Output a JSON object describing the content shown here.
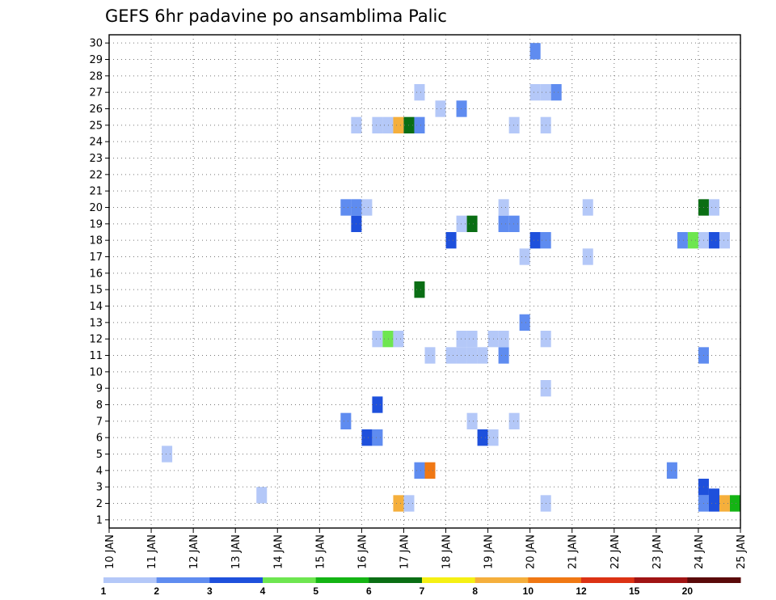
{
  "chart_data": {
    "type": "heatmap",
    "title": "GEFS 6hr padavine po ansamblima Palic",
    "xlabel": "",
    "ylabel": "",
    "x_ticks": [
      "10 JAN",
      "11 JAN",
      "12 JAN",
      "13 JAN",
      "14 JAN",
      "15 JAN",
      "16 JAN",
      "17 JAN",
      "18 JAN",
      "19 JAN",
      "20 JAN",
      "21 JAN",
      "22 JAN",
      "23 JAN",
      "24 JAN",
      "25 JAN"
    ],
    "y_ticks": [
      "1",
      "2",
      "3",
      "4",
      "5",
      "6",
      "7",
      "8",
      "9",
      "10",
      "11",
      "12",
      "13",
      "14",
      "15",
      "16",
      "17",
      "18",
      "19",
      "20",
      "21",
      "22",
      "23",
      "24",
      "25",
      "26",
      "27",
      "28",
      "29",
      "30"
    ],
    "xlim": [
      0,
      60
    ],
    "ylim": [
      0.5,
      30.5
    ],
    "grid": true,
    "colorbar": {
      "levels": [
        "1",
        "2",
        "3",
        "4",
        "5",
        "6",
        "7",
        "8",
        "10",
        "12",
        "15",
        "20"
      ],
      "colors": [
        "#b4c8f8",
        "#5f8cf0",
        "#1e50dc",
        "#6ee650",
        "#14b414",
        "#0a6e14",
        "#f5f014",
        "#f5af3c",
        "#f07814",
        "#dc3214",
        "#a01414",
        "#5a0a0a"
      ]
    },
    "cells": [
      {
        "x": 27.5,
        "y": 2,
        "v": 8
      },
      {
        "x": 28.5,
        "y": 2,
        "v": 1
      },
      {
        "x": 41.5,
        "y": 2,
        "v": 1
      },
      {
        "x": 56.5,
        "y": 2,
        "v": 2
      },
      {
        "x": 57.5,
        "y": 2,
        "v": 3
      },
      {
        "x": 58.5,
        "y": 2,
        "v": 8
      },
      {
        "x": 59.5,
        "y": 2,
        "v": 5
      },
      {
        "x": 57.5,
        "y": 2.4,
        "v": 3
      },
      {
        "x": 56.5,
        "y": 3,
        "v": 3
      },
      {
        "x": 14.5,
        "y": 2.5,
        "v": 1
      },
      {
        "x": 29.5,
        "y": 4,
        "v": 2
      },
      {
        "x": 30.5,
        "y": 4,
        "v": 9
      },
      {
        "x": 53.5,
        "y": 4,
        "v": 2
      },
      {
        "x": 5.5,
        "y": 5,
        "v": 1
      },
      {
        "x": 24.5,
        "y": 6,
        "v": 3
      },
      {
        "x": 25.5,
        "y": 6,
        "v": 2
      },
      {
        "x": 35.5,
        "y": 6,
        "v": 3
      },
      {
        "x": 36.5,
        "y": 6,
        "v": 1
      },
      {
        "x": 22.5,
        "y": 7,
        "v": 2
      },
      {
        "x": 34.5,
        "y": 7,
        "v": 1
      },
      {
        "x": 38.5,
        "y": 7,
        "v": 1
      },
      {
        "x": 25.5,
        "y": 8,
        "v": 3
      },
      {
        "x": 41.5,
        "y": 9,
        "v": 1
      },
      {
        "x": 30.5,
        "y": 11,
        "v": 1
      },
      {
        "x": 32.5,
        "y": 11,
        "v": 1
      },
      {
        "x": 33.5,
        "y": 11,
        "v": 1
      },
      {
        "x": 34.5,
        "y": 11,
        "v": 1
      },
      {
        "x": 35.5,
        "y": 11,
        "v": 1
      },
      {
        "x": 37.5,
        "y": 11,
        "v": 2
      },
      {
        "x": 56.5,
        "y": 11,
        "v": 2
      },
      {
        "x": 25.5,
        "y": 12,
        "v": 1
      },
      {
        "x": 26.5,
        "y": 12,
        "v": 4
      },
      {
        "x": 27.5,
        "y": 12,
        "v": 1
      },
      {
        "x": 33.5,
        "y": 12,
        "v": 1
      },
      {
        "x": 34.5,
        "y": 12,
        "v": 1
      },
      {
        "x": 36.5,
        "y": 12,
        "v": 1
      },
      {
        "x": 37.5,
        "y": 12,
        "v": 1
      },
      {
        "x": 41.5,
        "y": 12,
        "v": 1
      },
      {
        "x": 39.5,
        "y": 13,
        "v": 2
      },
      {
        "x": 29.5,
        "y": 15,
        "v": 6
      },
      {
        "x": 39.5,
        "y": 17,
        "v": 1
      },
      {
        "x": 45.5,
        "y": 17,
        "v": 1
      },
      {
        "x": 32.5,
        "y": 18,
        "v": 3
      },
      {
        "x": 40.5,
        "y": 18,
        "v": 3
      },
      {
        "x": 41.5,
        "y": 18,
        "v": 2
      },
      {
        "x": 54.5,
        "y": 18,
        "v": 2
      },
      {
        "x": 55.5,
        "y": 18,
        "v": 4
      },
      {
        "x": 56.5,
        "y": 18,
        "v": 1
      },
      {
        "x": 57.5,
        "y": 18,
        "v": 3
      },
      {
        "x": 58.5,
        "y": 18,
        "v": 1
      },
      {
        "x": 23.5,
        "y": 19,
        "v": 3
      },
      {
        "x": 33.5,
        "y": 19,
        "v": 1
      },
      {
        "x": 34.5,
        "y": 19,
        "v": 6
      },
      {
        "x": 37.5,
        "y": 19,
        "v": 2
      },
      {
        "x": 38.5,
        "y": 19,
        "v": 2
      },
      {
        "x": 22.5,
        "y": 20,
        "v": 2
      },
      {
        "x": 23.5,
        "y": 20,
        "v": 2
      },
      {
        "x": 24.5,
        "y": 20,
        "v": 1
      },
      {
        "x": 37.5,
        "y": 20,
        "v": 1
      },
      {
        "x": 45.5,
        "y": 20,
        "v": 1
      },
      {
        "x": 56.5,
        "y": 20,
        "v": 6
      },
      {
        "x": 57.5,
        "y": 20,
        "v": 1
      },
      {
        "x": 23.5,
        "y": 25,
        "v": 1
      },
      {
        "x": 25.5,
        "y": 25,
        "v": 1
      },
      {
        "x": 26.5,
        "y": 25,
        "v": 1
      },
      {
        "x": 27.5,
        "y": 25,
        "v": 8
      },
      {
        "x": 28.5,
        "y": 25,
        "v": 6
      },
      {
        "x": 29.5,
        "y": 25,
        "v": 2
      },
      {
        "x": 38.5,
        "y": 25,
        "v": 1
      },
      {
        "x": 41.5,
        "y": 25,
        "v": 1
      },
      {
        "x": 31.5,
        "y": 26,
        "v": 1
      },
      {
        "x": 33.5,
        "y": 26,
        "v": 2
      },
      {
        "x": 29.5,
        "y": 27,
        "v": 1
      },
      {
        "x": 40.5,
        "y": 27,
        "v": 1
      },
      {
        "x": 41.5,
        "y": 27,
        "v": 1
      },
      {
        "x": 42.5,
        "y": 27,
        "v": 2
      },
      {
        "x": 40.5,
        "y": 29.5,
        "v": 2
      }
    ]
  }
}
